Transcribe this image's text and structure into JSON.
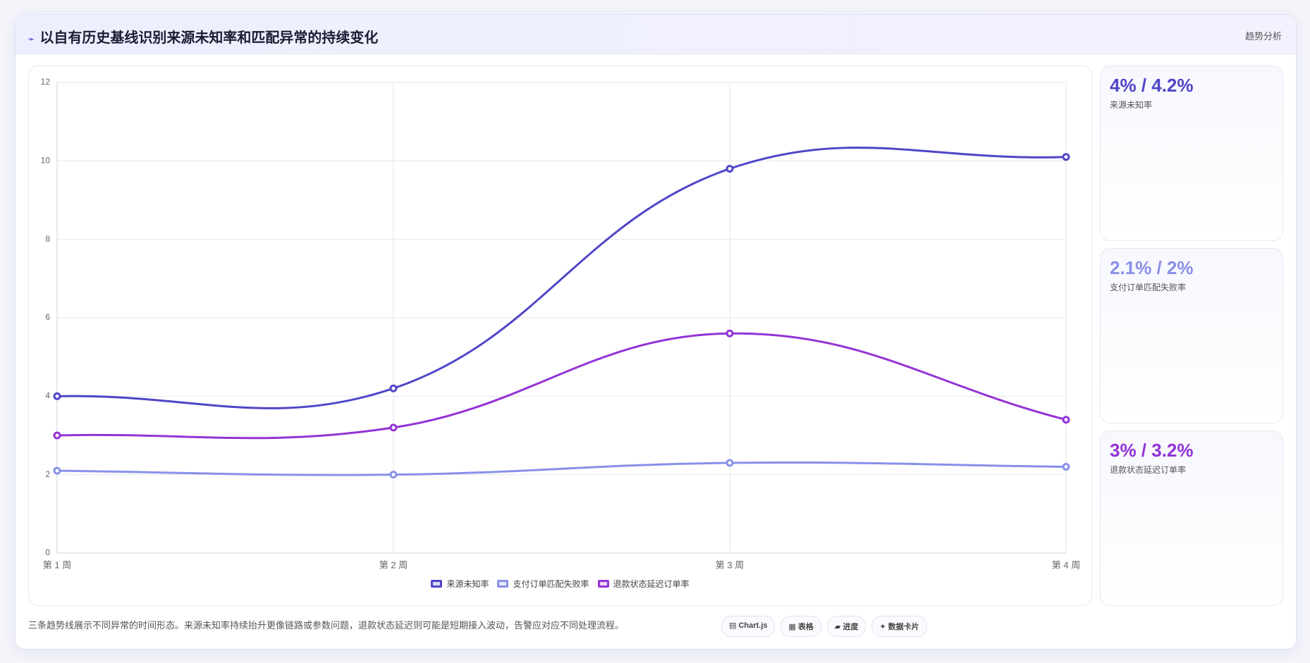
{
  "header": {
    "icon": "⌁",
    "title": "以自有历史基线识别来源未知率和匹配异常的持续变化",
    "tag": "趋势分析"
  },
  "chart_data": {
    "type": "line",
    "categories": [
      "第 1 周",
      "第 2 周",
      "第 3 周",
      "第 4 周"
    ],
    "series": [
      {
        "name": "来源未知率",
        "color": "#4f46c8",
        "values": [
          4,
          4.2,
          9.8,
          10.1
        ]
      },
      {
        "name": "支付订单匹配失败率",
        "color": "#8890e8",
        "values": [
          2.1,
          2,
          2.3,
          2.2
        ]
      },
      {
        "name": "退款状态延迟订单率",
        "color": "#9333d6",
        "values": [
          3,
          3.2,
          5.6,
          3.4
        ]
      }
    ],
    "ylim": [
      0,
      12
    ],
    "yticks": [
      0,
      2,
      4,
      6,
      8,
      10,
      12
    ],
    "grid": true,
    "legend": "bottom"
  },
  "cards": [
    {
      "value": "4% / 4.2%",
      "label": "来源未知率",
      "color": "#4f46c8"
    },
    {
      "value": "2.1% / 2%",
      "label": "支付订单匹配失败率",
      "color": "#8890e8"
    },
    {
      "value": "3% / 3.2%",
      "label": "退款状态延迟订单率",
      "color": "#9333d6"
    }
  ],
  "footer": {
    "note": "三条趋势线展示不同异常的时间形态。来源未知率持续抬升更像链路或参数问题，退款状态延迟则可能是短期接入波动，告警应对应不同处理流程。",
    "buttons": [
      "▤ Chart.js",
      "▦ 表格",
      "▰ 进度",
      "✦ 数据卡片"
    ]
  }
}
